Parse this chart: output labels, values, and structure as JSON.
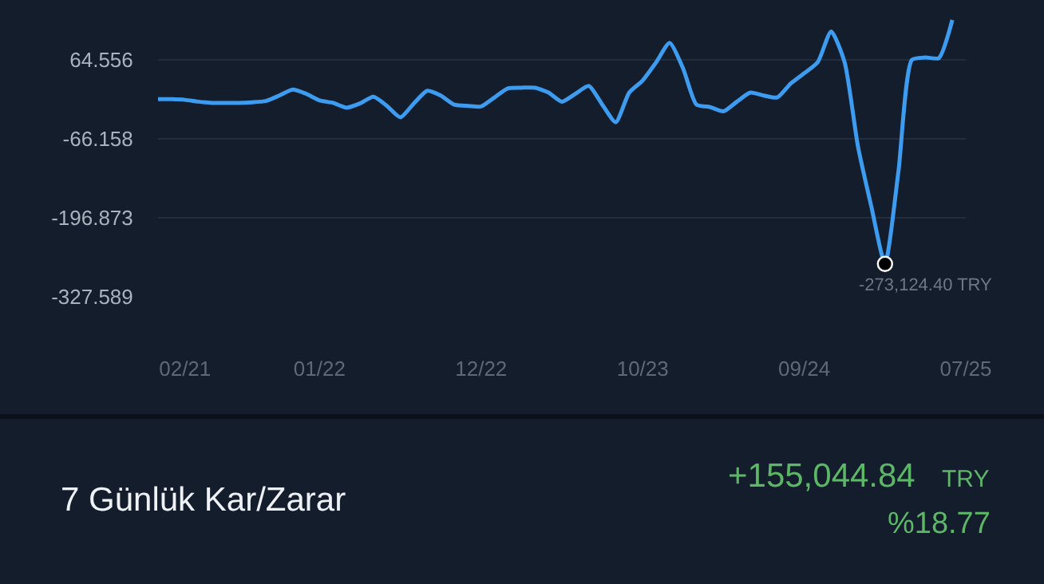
{
  "chart_data": {
    "type": "line",
    "categories": [
      null,
      null,
      "02/21",
      null,
      null,
      null,
      null,
      null,
      null,
      null,
      null,
      null,
      "01/22",
      null,
      null,
      null,
      null,
      null,
      null,
      null,
      null,
      null,
      null,
      null,
      "12/22",
      null,
      null,
      null,
      null,
      null,
      null,
      null,
      null,
      null,
      null,
      null,
      "10/23",
      null,
      null,
      null,
      null,
      null,
      null,
      null,
      null,
      null,
      null,
      null,
      "09/24",
      null,
      null,
      null,
      null,
      null,
      null,
      null,
      null,
      null,
      null,
      null,
      "07/25"
    ],
    "series": [
      {
        "color": "#3d9cf0",
        "values": [
          -1,
          -1,
          -2,
          -5,
          -7,
          -7,
          -7,
          -6,
          -4,
          5,
          15,
          8,
          -3,
          -7,
          -15,
          -8,
          3,
          -12,
          -31,
          -8,
          13,
          5,
          -10,
          -12,
          -13,
          2,
          17,
          18,
          18,
          10,
          -5,
          8,
          21,
          -10,
          -39,
          10,
          30,
          60,
          92,
          50,
          -10,
          -14,
          -21,
          -5,
          10,
          5,
          2,
          25,
          42,
          60,
          111,
          60,
          -80,
          -180,
          -273.1,
          -120,
          64,
          68,
          67,
          130,
          null
        ]
      }
    ],
    "ylim": [
      -327.589,
      163
    ],
    "yticks": [
      {
        "value": 64.556,
        "label": "64.556"
      },
      {
        "value": -66.158,
        "label": "-66.158"
      },
      {
        "value": -196.873,
        "label": "-196.873"
      },
      {
        "value": -327.589,
        "label": "-327.589"
      }
    ],
    "grid": "y",
    "legend": false,
    "marker": "none",
    "line_style": "solid",
    "annotations": [
      "-273,124.40 TRY",
      "7 Günlük Kar/Zarar",
      "+155,044.84",
      "TRY",
      "%18.77"
    ]
  }
}
